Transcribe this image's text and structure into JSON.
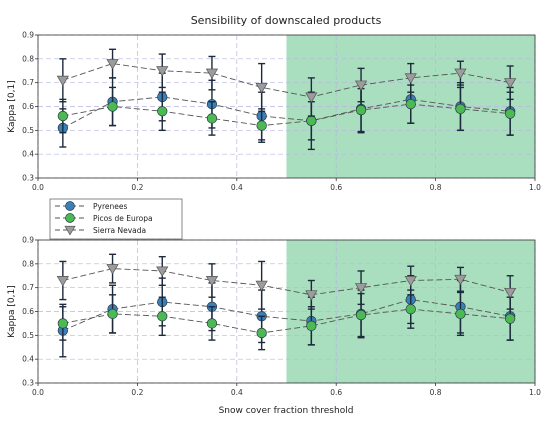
{
  "figure": {
    "title": "Sensibility of downscaled products",
    "xlabel": "Snow cover fraction threshold",
    "colors": {
      "pyrenees": "#3a7fb5",
      "picos": "#4cba52",
      "sierra": "#9c9c9c",
      "highlight": "#a9dfbf",
      "errorbar": "#1c2a3c",
      "line": "#555555"
    }
  },
  "chart_data": [
    {
      "type": "line",
      "title": "Sensibility of downscaled products",
      "ylabel": "Kappa [0,1]",
      "xlabel": "",
      "xlim": [
        0.0,
        1.0
      ],
      "ylim": [
        0.3,
        0.9
      ],
      "xticks": [
        "0.0",
        "0.2",
        "0.4",
        "0.6",
        "0.8",
        "1.0"
      ],
      "yticks": [
        "0.3",
        "0.4",
        "0.5",
        "0.6",
        "0.7",
        "0.8",
        "0.9"
      ],
      "x": [
        0.05,
        0.15,
        0.25,
        0.35,
        0.45,
        0.55,
        0.65,
        0.75,
        0.85,
        0.95
      ],
      "highlight_x_range": [
        0.5,
        1.0
      ],
      "grid": true,
      "legend_position": "below",
      "series": [
        {
          "name": "Pyrenees",
          "marker": "circle",
          "values": [
            0.51,
            0.62,
            0.64,
            0.61,
            0.56,
            0.54,
            0.59,
            0.63,
            0.6,
            0.58
          ],
          "err": [
            0.08,
            0.1,
            0.1,
            0.1,
            0.1,
            0.12,
            0.1,
            0.1,
            0.1,
            0.1
          ]
        },
        {
          "name": "Picos de Europa",
          "marker": "circle",
          "values": [
            0.56,
            0.6,
            0.58,
            0.55,
            0.52,
            0.54,
            0.585,
            0.61,
            0.59,
            0.57
          ],
          "err": [
            0.07,
            0.08,
            0.08,
            0.07,
            0.07,
            0.08,
            0.09,
            0.08,
            0.09,
            0.09
          ]
        },
        {
          "name": "Sierra Nevada",
          "marker": "triangle-down",
          "values": [
            0.71,
            0.78,
            0.75,
            0.74,
            0.68,
            0.64,
            0.69,
            0.72,
            0.74,
            0.7
          ],
          "err": [
            0.09,
            0.06,
            0.07,
            0.07,
            0.1,
            0.08,
            0.07,
            0.06,
            0.05,
            0.07
          ]
        }
      ]
    },
    {
      "type": "line",
      "title": "",
      "ylabel": "Kappa [0,1]",
      "xlabel": "Snow cover fraction threshold",
      "xlim": [
        0.0,
        1.0
      ],
      "ylim": [
        0.3,
        0.9
      ],
      "xticks": [
        "0.0",
        "0.2",
        "0.4",
        "0.6",
        "0.8",
        "1.0"
      ],
      "yticks": [
        "0.3",
        "0.4",
        "0.5",
        "0.6",
        "0.7",
        "0.8",
        "0.9"
      ],
      "x": [
        0.05,
        0.15,
        0.25,
        0.35,
        0.45,
        0.55,
        0.65,
        0.75,
        0.85,
        0.95
      ],
      "highlight_x_range": [
        0.5,
        1.0
      ],
      "grid": true,
      "series": [
        {
          "name": "Pyrenees",
          "marker": "circle",
          "values": [
            0.52,
            0.61,
            0.64,
            0.62,
            0.58,
            0.56,
            0.59,
            0.65,
            0.62,
            0.58
          ],
          "err": [
            0.11,
            0.1,
            0.1,
            0.1,
            0.11,
            0.1,
            0.1,
            0.1,
            0.11,
            0.1
          ]
        },
        {
          "name": "Picos de Europa",
          "marker": "circle",
          "values": [
            0.55,
            0.59,
            0.58,
            0.55,
            0.51,
            0.54,
            0.585,
            0.61,
            0.59,
            0.57
          ],
          "err": [
            0.07,
            0.08,
            0.08,
            0.07,
            0.07,
            0.08,
            0.09,
            0.08,
            0.09,
            0.09
          ]
        },
        {
          "name": "Sierra Nevada",
          "marker": "triangle-down",
          "values": [
            0.73,
            0.78,
            0.77,
            0.73,
            0.71,
            0.67,
            0.7,
            0.73,
            0.735,
            0.68
          ],
          "err": [
            0.08,
            0.06,
            0.06,
            0.07,
            0.1,
            0.06,
            0.07,
            0.06,
            0.05,
            0.07
          ]
        }
      ]
    }
  ]
}
